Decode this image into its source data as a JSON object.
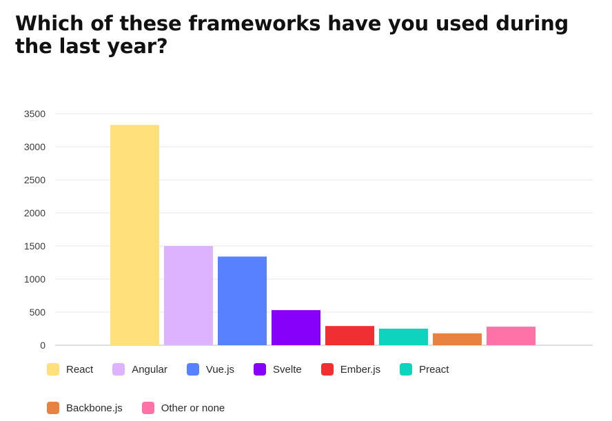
{
  "chart_data": {
    "type": "bar",
    "title": "Which of these frameworks have you used during the last year?",
    "xlabel": "",
    "ylabel": "",
    "categories": [
      "React",
      "Angular",
      "Vue.js",
      "Svelte",
      "Ember.js",
      "Preact",
      "Backbone.js",
      "Other or none"
    ],
    "values": [
      3330,
      1500,
      1340,
      530,
      290,
      250,
      180,
      280
    ],
    "colors": [
      "#FFE07A",
      "#DDB2FF",
      "#5881FF",
      "#8700FA",
      "#F03030",
      "#0ED4BE",
      "#E88240",
      "#FF72A7"
    ],
    "ylim": [
      0,
      3500
    ],
    "yticks": [
      0,
      500,
      1000,
      1500,
      2000,
      2500,
      3000,
      3500
    ],
    "grid": true,
    "legend_position": "bottom"
  }
}
